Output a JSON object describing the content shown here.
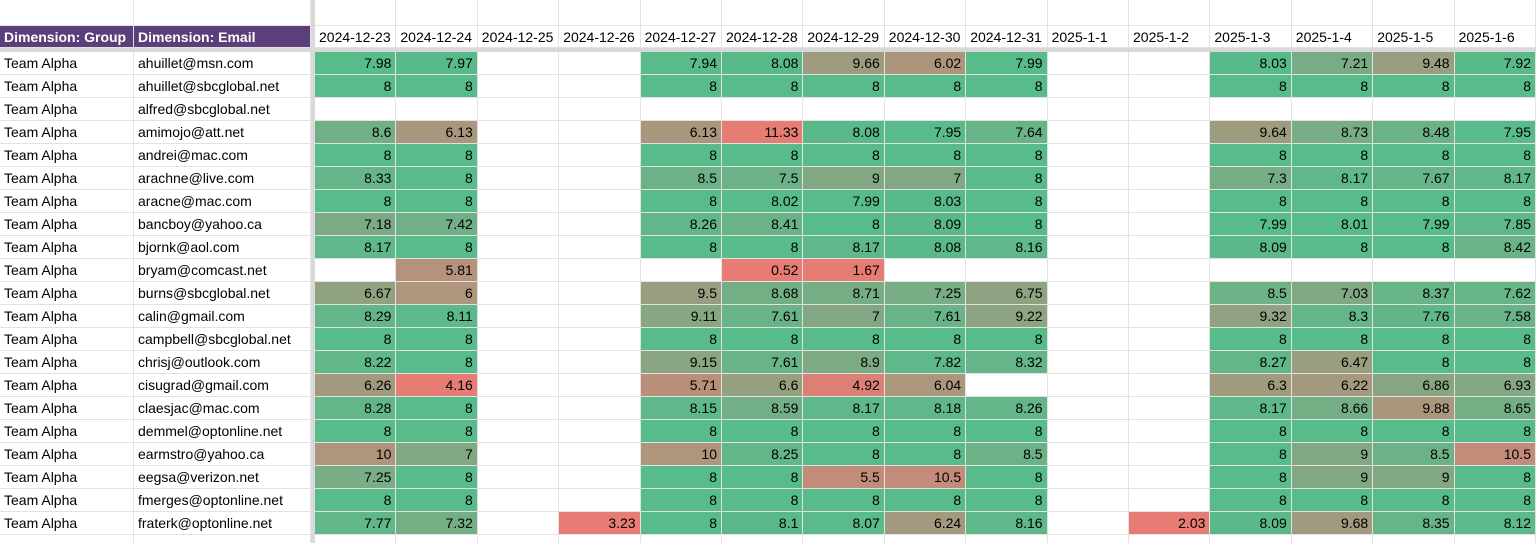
{
  "header": {
    "group_label": "Dimension: Group",
    "email_label": "Dimension: Email"
  },
  "colors": {
    "good": "#57bb8a",
    "bad": "#e67c73"
  },
  "dates": [
    "2024-12-23",
    "2024-12-24",
    "2024-12-25",
    "2024-12-26",
    "2024-12-27",
    "2024-12-28",
    "2024-12-29",
    "2024-12-30",
    "2024-12-31",
    "2025-1-1",
    "2025-1-2",
    "2025-1-3",
    "2025-1-4",
    "2025-1-5",
    "2025-1-6"
  ],
  "rows": [
    {
      "group": "Team Alpha",
      "email": "ahuillet@msn.com",
      "values": [
        7.98,
        7.97,
        null,
        null,
        7.94,
        8.08,
        9.66,
        6.02,
        7.99,
        null,
        null,
        8.03,
        7.21,
        9.48,
        7.92
      ]
    },
    {
      "group": "Team Alpha",
      "email": "ahuillet@sbcglobal.net",
      "values": [
        8,
        8,
        null,
        null,
        8,
        8,
        8,
        8,
        8,
        null,
        null,
        8,
        8,
        8,
        8
      ]
    },
    {
      "group": "Team Alpha",
      "email": "alfred@sbcglobal.net",
      "values": [
        null,
        null,
        null,
        null,
        null,
        null,
        null,
        null,
        null,
        null,
        null,
        null,
        null,
        null,
        null
      ]
    },
    {
      "group": "Team Alpha",
      "email": "amimojo@att.net",
      "values": [
        8.6,
        6.13,
        null,
        null,
        6.13,
        11.33,
        8.08,
        7.95,
        7.64,
        null,
        null,
        9.64,
        8.73,
        8.48,
        7.95
      ]
    },
    {
      "group": "Team Alpha",
      "email": "andrei@mac.com",
      "values": [
        8,
        8,
        null,
        null,
        8,
        8,
        8,
        8,
        8,
        null,
        null,
        8,
        8,
        8,
        8
      ]
    },
    {
      "group": "Team Alpha",
      "email": "arachne@live.com",
      "values": [
        8.33,
        8,
        null,
        null,
        8.5,
        7.5,
        9,
        7,
        8,
        null,
        null,
        7.3,
        8.17,
        7.67,
        8.17
      ]
    },
    {
      "group": "Team Alpha",
      "email": "aracne@mac.com",
      "values": [
        8,
        8,
        null,
        null,
        8,
        8.02,
        7.99,
        8.03,
        8,
        null,
        null,
        8,
        8,
        8,
        8
      ]
    },
    {
      "group": "Team Alpha",
      "email": "bancboy@yahoo.ca",
      "values": [
        7.18,
        7.42,
        null,
        null,
        8.26,
        8.41,
        8,
        8.09,
        8,
        null,
        null,
        7.99,
        8.01,
        7.99,
        7.85
      ]
    },
    {
      "group": "Team Alpha",
      "email": "bjornk@aol.com",
      "values": [
        8.17,
        8,
        null,
        null,
        8,
        8,
        8.17,
        8.08,
        8.16,
        null,
        null,
        8.09,
        8,
        8,
        8.42
      ]
    },
    {
      "group": "Team Alpha",
      "email": "bryam@comcast.net",
      "values": [
        null,
        5.81,
        null,
        null,
        null,
        0.52,
        1.67,
        null,
        null,
        null,
        null,
        null,
        null,
        null,
        null
      ]
    },
    {
      "group": "Team Alpha",
      "email": "burns@sbcglobal.net",
      "values": [
        6.67,
        6,
        null,
        null,
        9.5,
        8.68,
        8.71,
        7.25,
        6.75,
        null,
        null,
        8.5,
        7.03,
        8.37,
        7.62
      ]
    },
    {
      "group": "Team Alpha",
      "email": "calin@gmail.com",
      "values": [
        8.29,
        8.11,
        null,
        null,
        9.11,
        7.61,
        7,
        7.61,
        9.22,
        null,
        null,
        9.32,
        8.3,
        7.76,
        7.58
      ]
    },
    {
      "group": "Team Alpha",
      "email": "campbell@sbcglobal.net",
      "values": [
        8,
        8,
        null,
        null,
        8,
        8,
        8,
        8,
        8,
        null,
        null,
        8,
        8,
        8,
        8
      ]
    },
    {
      "group": "Team Alpha",
      "email": "chrisj@outlook.com",
      "values": [
        8.22,
        8,
        null,
        null,
        9.15,
        7.61,
        8.9,
        7.82,
        8.32,
        null,
        null,
        8.27,
        6.47,
        8,
        8
      ]
    },
    {
      "group": "Team Alpha",
      "email": "cisugrad@gmail.com",
      "values": [
        6.26,
        4.16,
        null,
        null,
        5.71,
        6.6,
        4.92,
        6.04,
        null,
        null,
        null,
        6.3,
        6.22,
        6.86,
        6.93
      ]
    },
    {
      "group": "Team Alpha",
      "email": "claesjac@mac.com",
      "values": [
        8.28,
        8,
        null,
        null,
        8.15,
        8.59,
        8.17,
        8.18,
        8.26,
        null,
        null,
        8.17,
        8.66,
        9.88,
        8.65
      ]
    },
    {
      "group": "Team Alpha",
      "email": "demmel@optonline.net",
      "values": [
        8,
        8,
        null,
        null,
        8,
        8,
        8,
        8,
        8,
        null,
        null,
        8,
        8,
        8,
        8
      ]
    },
    {
      "group": "Team Alpha",
      "email": "earmstro@yahoo.ca",
      "values": [
        10,
        7,
        null,
        null,
        10,
        8.25,
        8,
        8,
        8.5,
        null,
        null,
        8,
        9,
        8.5,
        10.5
      ]
    },
    {
      "group": "Team Alpha",
      "email": "eegsa@verizon.net",
      "values": [
        7.25,
        8,
        null,
        null,
        8,
        8,
        5.5,
        10.5,
        8,
        null,
        null,
        8,
        9,
        9,
        8
      ]
    },
    {
      "group": "Team Alpha",
      "email": "fmerges@optonline.net",
      "values": [
        8,
        8,
        null,
        null,
        8,
        8,
        8,
        8,
        8,
        null,
        null,
        8,
        8,
        8,
        8
      ]
    },
    {
      "group": "Team Alpha",
      "email": "fraterk@optonline.net",
      "values": [
        7.77,
        7.32,
        null,
        3.23,
        8,
        8.1,
        8.07,
        6.24,
        8.16,
        null,
        2.03,
        8.09,
        9.68,
        8.35,
        8.12
      ]
    }
  ]
}
